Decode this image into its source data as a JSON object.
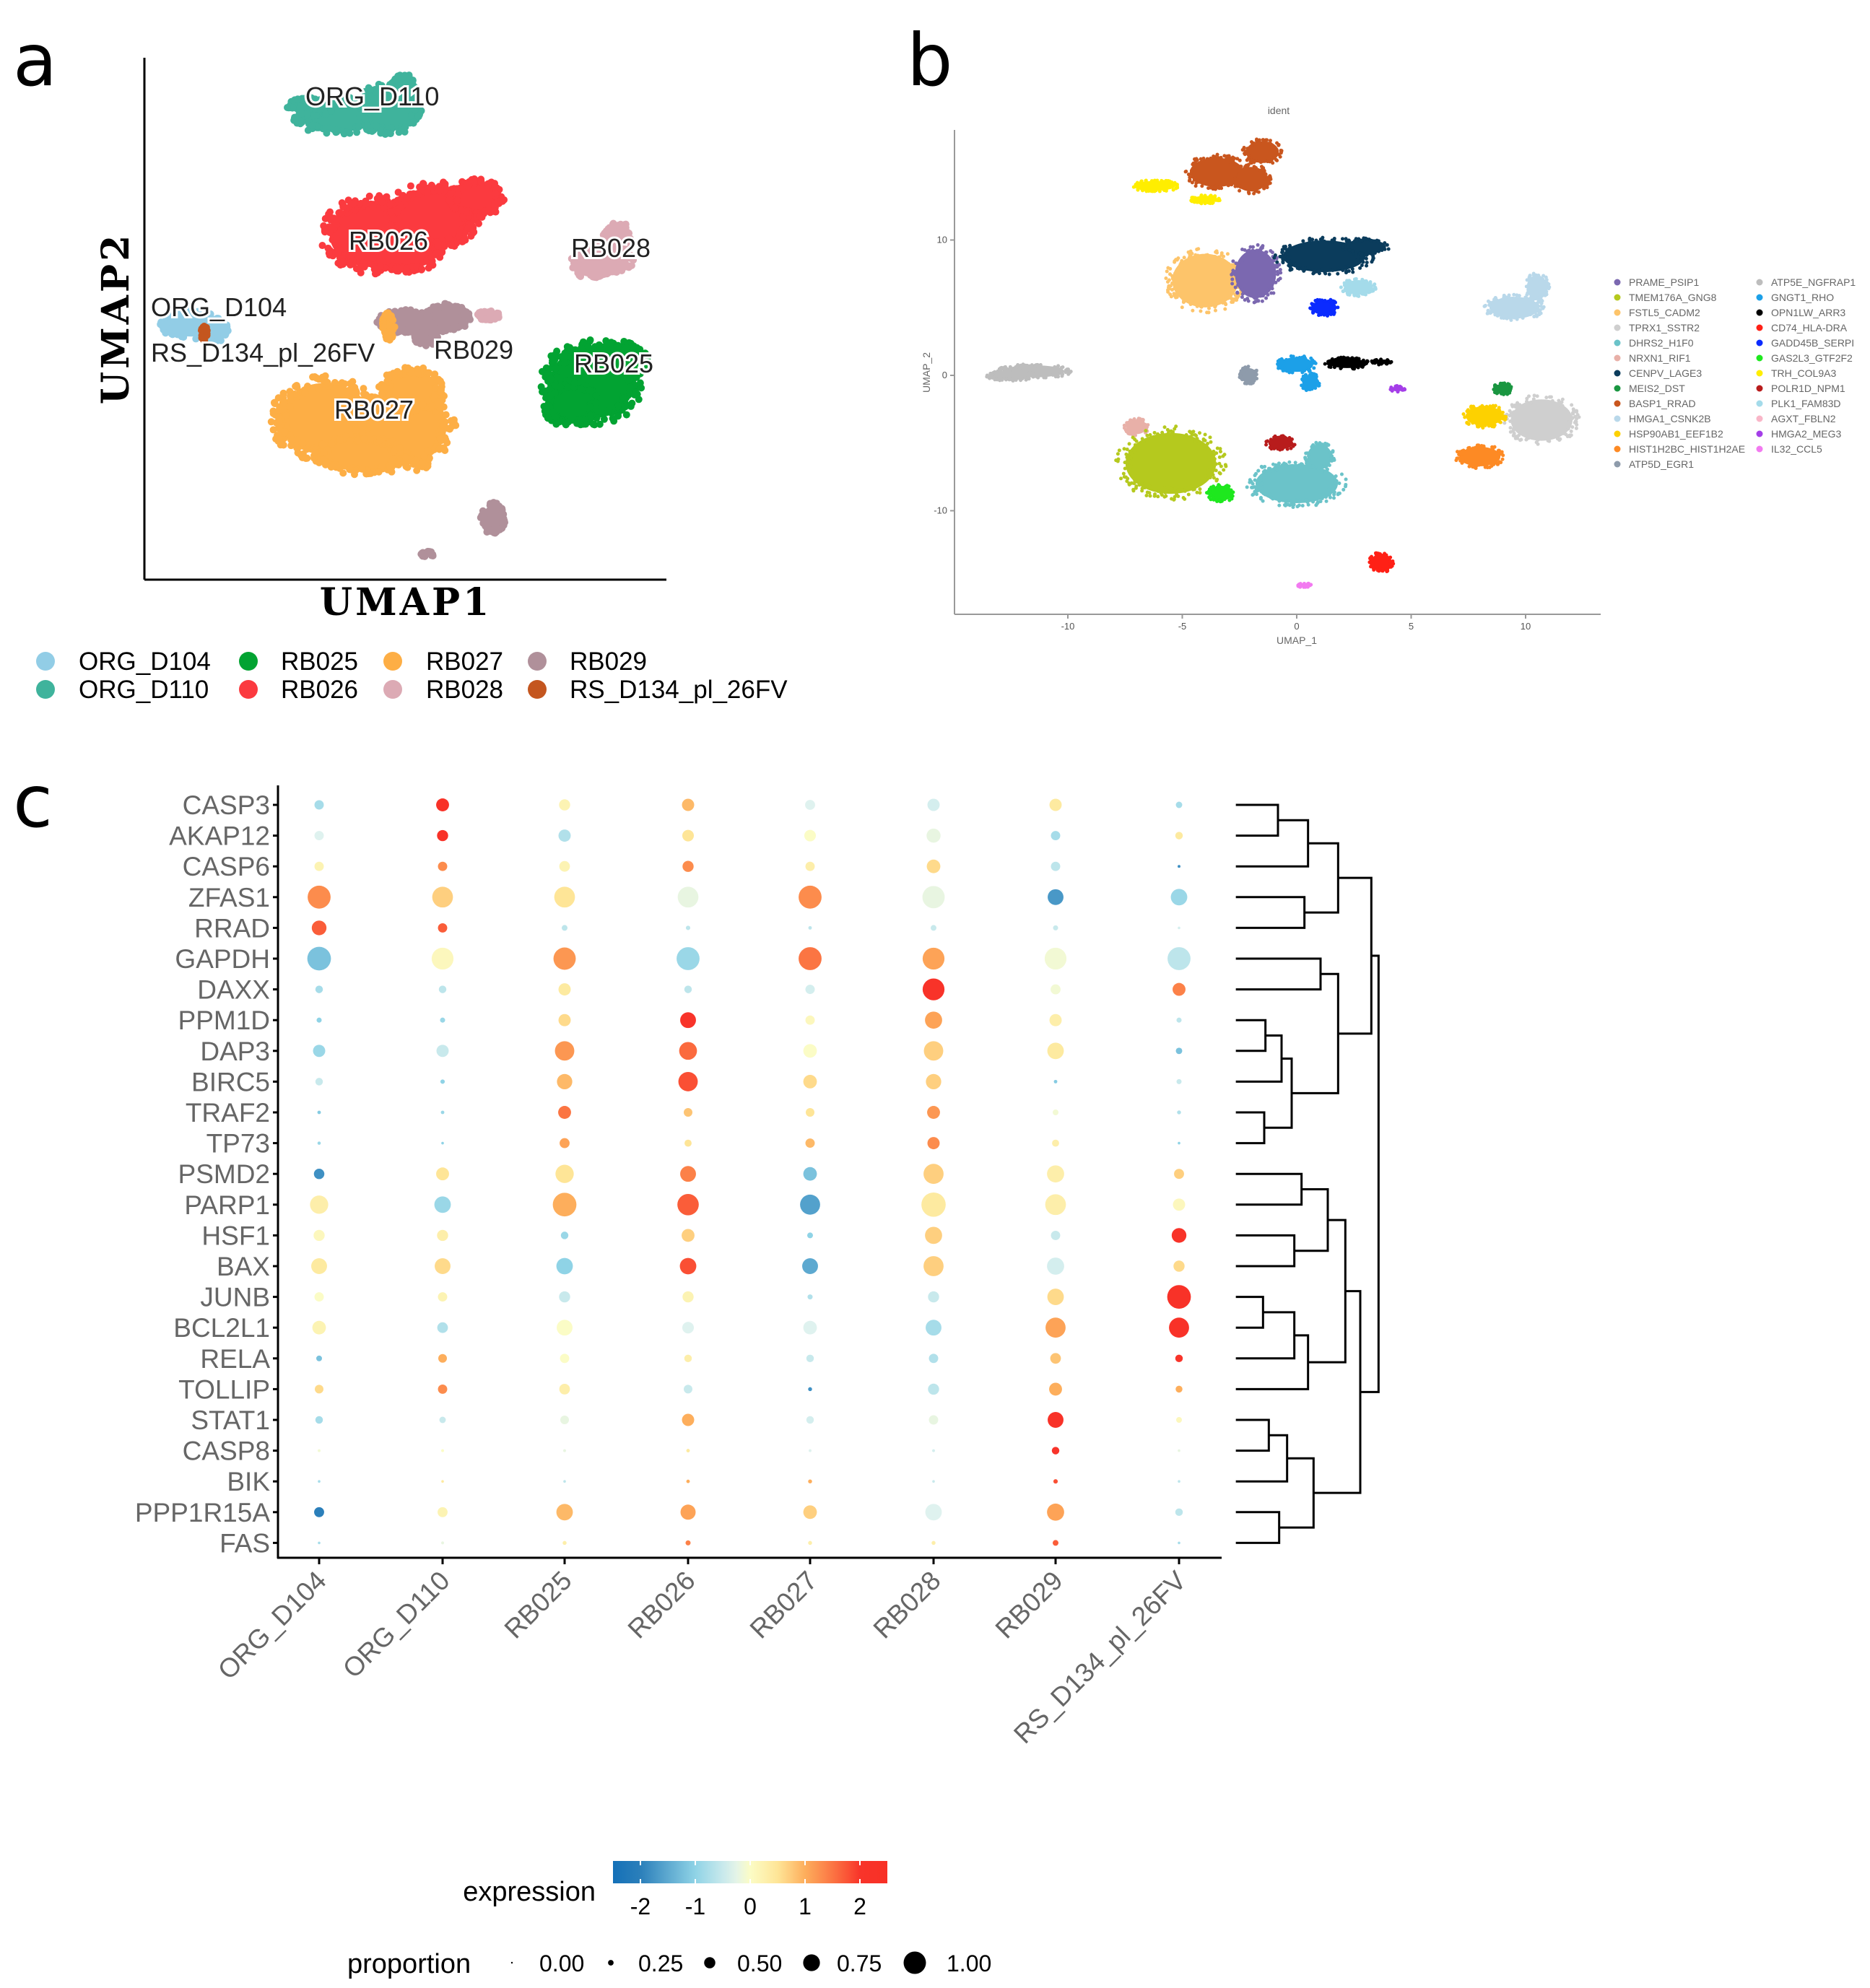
{
  "panel_labels": {
    "a": "a",
    "b": "b",
    "c": "c"
  },
  "panel_a": {
    "xlabel": "UMAP1",
    "ylabel": "UMAP2",
    "clusters": [
      {
        "name": "ORG_D104",
        "color": "#92cde6"
      },
      {
        "name": "ORG_D110",
        "color": "#3fb39c"
      },
      {
        "name": "RB025",
        "color": "#02a332"
      },
      {
        "name": "RB026",
        "color": "#fb3a3f"
      },
      {
        "name": "RB027",
        "color": "#fdae45"
      },
      {
        "name": "RB028",
        "color": "#dcaab4"
      },
      {
        "name": "RB029",
        "color": "#b0909a"
      },
      {
        "name": "RS_D134_pl_26FV",
        "color": "#c4561f"
      }
    ]
  },
  "panel_b": {
    "title": "ident",
    "xlabel": "UMAP_1",
    "ylabel": "UMAP_2",
    "xticks": [
      "-10",
      "-5",
      "0",
      "5",
      "10"
    ],
    "yticks": [
      "10",
      "0",
      "-10"
    ],
    "legend": [
      {
        "label": "PRAME_PSIP1",
        "color": "#7b68b0"
      },
      {
        "label": "TMEM176A_GNG8",
        "color": "#b5c91e"
      },
      {
        "label": "FSTL5_CADM2",
        "color": "#fdc46a"
      },
      {
        "label": "TPRX1_SSTR2",
        "color": "#cfcfcf"
      },
      {
        "label": "DHRS2_H1F0",
        "color": "#6bc3c9"
      },
      {
        "label": "NRXN1_RIF1",
        "color": "#e8b0a8"
      },
      {
        "label": "CENPV_LAGE3",
        "color": "#0b3c5c"
      },
      {
        "label": "MEIS2_DST",
        "color": "#1a9641"
      },
      {
        "label": "BASP1_RRAD",
        "color": "#c9561e"
      },
      {
        "label": "HMGA1_CSNK2B",
        "color": "#b9d8ea"
      },
      {
        "label": "HSP90AB1_EEF1B2",
        "color": "#fdd100"
      },
      {
        "label": "HIST1H2BC_HIST1H2AE",
        "color": "#fd8a24"
      },
      {
        "label": "ATP5D_EGR1",
        "color": "#8e9bab"
      },
      {
        "label": "ATP5E_NGFRAP1",
        "color": "#bdbdbd"
      },
      {
        "label": "GNGT1_RHO",
        "color": "#1ca0e8"
      },
      {
        "label": "OPN1LW_ARR3",
        "color": "#000000"
      },
      {
        "label": "CD74_HLA-DRA",
        "color": "#ff2016"
      },
      {
        "label": "GADD45B_SERPI",
        "color": "#0b2bff"
      },
      {
        "label": "GAS2L3_GTF2F2",
        "color": "#1ee81e"
      },
      {
        "label": "TRH_COL9A3",
        "color": "#ffee00"
      },
      {
        "label": "POLR1D_NPM1",
        "color": "#b81c1c"
      },
      {
        "label": "PLK1_FAM83D",
        "color": "#a4dbea"
      },
      {
        "label": "AGXT_FBLN2",
        "color": "#f9b6c8"
      },
      {
        "label": "HMGA2_MEG3",
        "color": "#a43ee8"
      },
      {
        "label": "IL32_CCL5",
        "color": "#f27af0"
      }
    ]
  },
  "chart_data": {
    "type": "heatmap",
    "subtype": "dot plot with dendrogram",
    "genes": [
      "CASP3",
      "AKAP12",
      "CASP6",
      "ZFAS1",
      "RRAD",
      "GAPDH",
      "DAXX",
      "PPM1D",
      "DAP3",
      "BIRC5",
      "TRAF2",
      "TP73",
      "PSMD2",
      "PARP1",
      "HSF1",
      "BAX",
      "JUNB",
      "BCL2L1",
      "RELA",
      "TOLLIP",
      "STAT1",
      "CASP8",
      "BIK",
      "PPP1R15A",
      "FAS"
    ],
    "samples": [
      "ORG_D104",
      "ORG_D110",
      "RB025",
      "RB026",
      "RB027",
      "RB028",
      "RB029",
      "RS_D134_pl_26FV"
    ],
    "expression": [
      [
        -0.8,
        2.2,
        0.2,
        0.9,
        -0.3,
        -0.4,
        0.4,
        -0.8
      ],
      [
        -0.3,
        2.2,
        -0.7,
        0.5,
        0.0,
        -0.2,
        -0.8,
        0.4
      ],
      [
        0.2,
        1.3,
        0.2,
        1.3,
        0.3,
        0.6,
        -0.6,
        -1.8
      ],
      [
        1.3,
        0.7,
        0.5,
        -0.2,
        1.3,
        -0.2,
        -1.7,
        -0.9
      ],
      [
        1.7,
        1.7,
        -0.6,
        -0.6,
        -0.6,
        -0.5,
        -0.5,
        -0.4
      ],
      [
        -1.2,
        0.1,
        1.2,
        -0.9,
        1.5,
        1.1,
        -0.1,
        -0.6
      ],
      [
        -0.8,
        -0.6,
        0.4,
        -0.6,
        -0.4,
        2.1,
        -0.1,
        1.4
      ],
      [
        -1.0,
        -0.9,
        0.6,
        2.0,
        0.1,
        1.1,
        0.3,
        -0.6
      ],
      [
        -0.9,
        -0.5,
        1.2,
        1.6,
        0.0,
        0.7,
        0.4,
        -1.2
      ],
      [
        -0.5,
        -1.0,
        0.9,
        1.8,
        0.6,
        0.7,
        -1.1,
        -0.5
      ],
      [
        -1.1,
        -0.9,
        1.5,
        0.8,
        0.5,
        1.2,
        -0.1,
        -0.7
      ],
      [
        -0.9,
        -1.0,
        1.1,
        0.5,
        0.9,
        1.3,
        0.3,
        -1.0
      ],
      [
        -1.8,
        0.5,
        0.5,
        1.4,
        -1.2,
        0.7,
        0.3,
        0.7
      ],
      [
        0.3,
        -0.9,
        1.0,
        1.7,
        -1.6,
        0.4,
        0.3,
        0.1
      ],
      [
        0.1,
        0.3,
        -0.9,
        0.7,
        -1.0,
        0.7,
        -0.5,
        2.1
      ],
      [
        0.4,
        0.6,
        -1.0,
        1.8,
        -1.5,
        0.7,
        -0.4,
        0.6
      ],
      [
        0.0,
        0.2,
        -0.5,
        0.2,
        -0.7,
        -0.5,
        0.6,
        2.2
      ],
      [
        0.2,
        -0.7,
        0.0,
        -0.3,
        -0.3,
        -0.8,
        1.1,
        2.2
      ],
      [
        -1.2,
        1.0,
        0.0,
        0.3,
        -0.5,
        -0.7,
        0.8,
        2.0
      ],
      [
        0.6,
        1.3,
        0.3,
        -0.5,
        -1.8,
        -0.6,
        1.0,
        1.0
      ],
      [
        -0.8,
        -0.5,
        -0.2,
        1.0,
        -0.4,
        -0.2,
        2.2,
        0.1
      ],
      [
        -0.1,
        0.0,
        -0.2,
        0.4,
        -0.3,
        -0.4,
        2.0,
        -0.2
      ],
      [
        -0.8,
        0.4,
        -0.6,
        1.0,
        1.0,
        -0.5,
        1.8,
        -0.6
      ],
      [
        -2.0,
        0.2,
        0.9,
        1.1,
        0.7,
        -0.3,
        1.1,
        -0.6
      ],
      [
        -0.8,
        -0.2,
        0.3,
        1.4,
        0.3,
        0.3,
        1.7,
        -0.8
      ]
    ],
    "proportion": [
      [
        0.32,
        0.48,
        0.4,
        0.45,
        0.35,
        0.45,
        0.45,
        0.19
      ],
      [
        0.32,
        0.4,
        0.45,
        0.42,
        0.42,
        0.53,
        0.32,
        0.24
      ],
      [
        0.32,
        0.32,
        0.38,
        0.4,
        0.32,
        0.51,
        0.32,
        0.03
      ],
      [
        0.93,
        0.83,
        0.83,
        0.83,
        0.93,
        0.9,
        0.61,
        0.64
      ],
      [
        0.56,
        0.32,
        0.16,
        0.1,
        0.06,
        0.16,
        0.13,
        0.02
      ],
      [
        0.96,
        0.88,
        0.9,
        0.93,
        0.93,
        0.88,
        0.88,
        0.93
      ],
      [
        0.24,
        0.24,
        0.45,
        0.24,
        0.32,
        0.88,
        0.35,
        0.48
      ],
      [
        0.13,
        0.13,
        0.45,
        0.61,
        0.32,
        0.67,
        0.45,
        0.13
      ],
      [
        0.45,
        0.45,
        0.77,
        0.7,
        0.51,
        0.77,
        0.64,
        0.19
      ],
      [
        0.24,
        0.1,
        0.59,
        0.77,
        0.51,
        0.59,
        0.06,
        0.13
      ],
      [
        0.06,
        0.06,
        0.48,
        0.29,
        0.29,
        0.48,
        0.16,
        0.08
      ],
      [
        0.05,
        0.02,
        0.35,
        0.22,
        0.32,
        0.45,
        0.22,
        0.02
      ],
      [
        0.37,
        0.48,
        0.72,
        0.61,
        0.51,
        0.8,
        0.67,
        0.35
      ],
      [
        0.72,
        0.64,
        0.96,
        0.86,
        0.8,
        0.99,
        0.83,
        0.45
      ],
      [
        0.4,
        0.4,
        0.24,
        0.48,
        0.16,
        0.67,
        0.32,
        0.56
      ],
      [
        0.61,
        0.61,
        0.64,
        0.64,
        0.61,
        0.8,
        0.67,
        0.4
      ],
      [
        0.32,
        0.32,
        0.4,
        0.4,
        0.13,
        0.4,
        0.64,
        0.96
      ],
      [
        0.51,
        0.38,
        0.61,
        0.42,
        0.51,
        0.61,
        0.8,
        0.8
      ],
      [
        0.16,
        0.29,
        0.32,
        0.24,
        0.24,
        0.32,
        0.38,
        0.24
      ],
      [
        0.29,
        0.32,
        0.38,
        0.29,
        0.08,
        0.4,
        0.48,
        0.21
      ],
      [
        0.24,
        0.19,
        0.29,
        0.45,
        0.24,
        0.32,
        0.61,
        0.16
      ],
      [
        0.03,
        0.03,
        0.03,
        0.06,
        0.03,
        0.03,
        0.24,
        0.02
      ],
      [
        0.02,
        0.02,
        0.02,
        0.06,
        0.08,
        0.02,
        0.1,
        0.02
      ],
      [
        0.35,
        0.35,
        0.64,
        0.58,
        0.51,
        0.64,
        0.67,
        0.24
      ],
      [
        0.02,
        0.03,
        0.08,
        0.13,
        0.08,
        0.08,
        0.16,
        0.02
      ]
    ],
    "color_legend": {
      "title": "expression",
      "ticks": [
        "-2",
        "-1",
        "0",
        "1",
        "2"
      ],
      "range": [
        -2.5,
        2.5
      ],
      "low_color": "#1470b8",
      "mid_color": "#fbfcc6",
      "high_color": "#f8302a"
    },
    "size_legend": {
      "title": "proportion",
      "values": [
        0.0,
        0.25,
        0.5,
        0.75,
        1.0
      ],
      "labels": [
        "0.00",
        "0.25",
        "0.50",
        "0.75",
        "1.00"
      ]
    }
  }
}
